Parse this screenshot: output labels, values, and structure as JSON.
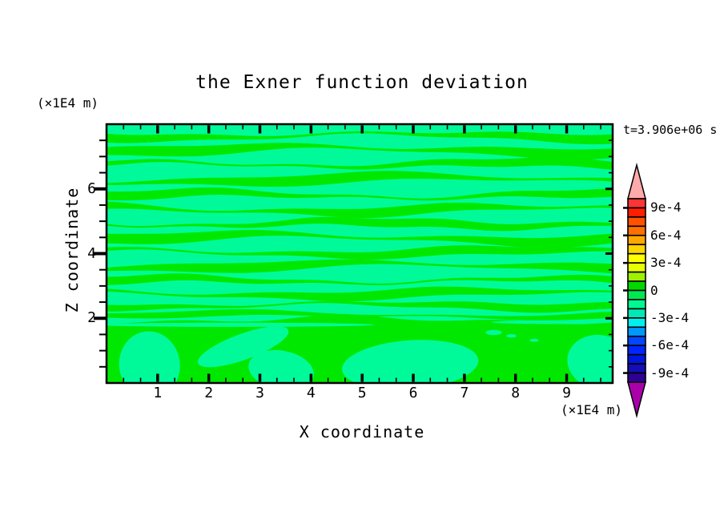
{
  "title": "the Exner function deviation",
  "annotations": {
    "time": "t=3.906e+06 s"
  },
  "axes": {
    "x": {
      "title": "X coordinate",
      "unit": "(×1E4 m)",
      "range": [
        0,
        9.9
      ],
      "major_ticks": [
        1,
        2,
        3,
        4,
        5,
        6,
        7,
        8,
        9
      ],
      "minor_step": 0.3333
    },
    "z": {
      "title": "Z coordinate",
      "unit": "(×1E4 m)",
      "range": [
        0,
        8
      ],
      "major_ticks": [
        2,
        4,
        6
      ],
      "minor_step": 0.5
    }
  },
  "colorbar": {
    "labels": [
      "9e-4",
      "6e-4",
      "3e-4",
      "0",
      "-3e-4",
      "-6e-4",
      "-9e-4"
    ],
    "label_values_e4": [
      9,
      6,
      3,
      0,
      -3,
      -6,
      -9
    ],
    "range_e4": [
      -10,
      10
    ],
    "segment_colors_top_to_bottom": [
      "#FF3434",
      "#FF1E00",
      "#FF5200",
      "#FF7000",
      "#FFA800",
      "#FFD600",
      "#FFFF00",
      "#E8FF00",
      "#A0F000",
      "#00D800",
      "#00E850",
      "#00F892",
      "#00E8B4",
      "#00F0F0",
      "#0098FF",
      "#0048FF",
      "#0026FF",
      "#0016DC",
      "#140EB4",
      "#2E0096"
    ],
    "over_color": "#FFAAAA",
    "under_color": "#AA00AA"
  },
  "chart_data": {
    "type": "filled_contour",
    "title": "the Exner function deviation",
    "xlabel": "X coordinate (×1E4 m)",
    "ylabel": "Z coordinate (×1E4 m)",
    "time": "t=3.906e+06 s",
    "xlim": [
      0,
      9.9
    ],
    "ylim": [
      0,
      8
    ],
    "contour_interval": 0.0001,
    "value_range": [
      -0.001,
      0.001
    ],
    "field_description": "Exner function deviation stays within ±1e-4: thin wavy horizontal bands of slightly positive (green) and slightly negative (spring green) deviation alternate through the column; below z≈2×1E4 m a connected positive (green) region holds several negative (spring green) blobs",
    "positive_band_color": "#00E800",
    "negative_band_color": "#00FA9A",
    "bands": [
      {
        "yc": 0.045,
        "hh": 0.02,
        "amp": 0.01,
        "fx": 1.2,
        "ph": 0.5,
        "tm": 0.55,
        "tfx": 0.9,
        "tph": 2.1
      },
      {
        "yc": 0.1,
        "hh": 0.022,
        "amp": 0.012,
        "fx": 1.0,
        "ph": 2.2,
        "tm": 0.5,
        "tfx": 1.3,
        "tph": 0.4
      },
      {
        "yc": 0.155,
        "hh": 0.018,
        "amp": 0.01,
        "fx": 1.4,
        "ph": 4.0,
        "tm": 0.6,
        "tfx": 0.8,
        "tph": 3.3
      },
      {
        "yc": 0.215,
        "hh": 0.022,
        "amp": 0.013,
        "fx": 0.9,
        "ph": 1.1,
        "tm": 0.5,
        "tfx": 1.1,
        "tph": 5.0
      },
      {
        "yc": 0.275,
        "hh": 0.019,
        "amp": 0.011,
        "fx": 1.3,
        "ph": 3.0,
        "tm": 0.6,
        "tfx": 1.0,
        "tph": 1.2
      },
      {
        "yc": 0.33,
        "hh": 0.021,
        "amp": 0.012,
        "fx": 1.1,
        "ph": 5.1,
        "tm": 0.55,
        "tfx": 1.4,
        "tph": 2.8
      },
      {
        "yc": 0.385,
        "hh": 0.018,
        "amp": 0.01,
        "fx": 1.5,
        "ph": 0.2,
        "tm": 0.6,
        "tfx": 0.9,
        "tph": 4.4
      },
      {
        "yc": 0.44,
        "hh": 0.022,
        "amp": 0.013,
        "fx": 1.0,
        "ph": 2.7,
        "tm": 0.5,
        "tfx": 1.2,
        "tph": 0.9
      },
      {
        "yc": 0.495,
        "hh": 0.019,
        "amp": 0.011,
        "fx": 1.2,
        "ph": 4.6,
        "tm": 0.6,
        "tfx": 1.0,
        "tph": 3.7
      },
      {
        "yc": 0.55,
        "hh": 0.021,
        "amp": 0.012,
        "fx": 0.9,
        "ph": 1.6,
        "tm": 0.55,
        "tfx": 1.3,
        "tph": 5.6
      },
      {
        "yc": 0.605,
        "hh": 0.018,
        "amp": 0.01,
        "fx": 1.4,
        "ph": 3.5,
        "tm": 0.6,
        "tfx": 0.8,
        "tph": 1.8
      },
      {
        "yc": 0.655,
        "hh": 0.02,
        "amp": 0.011,
        "fx": 1.1,
        "ph": 5.4,
        "tm": 0.5,
        "tfx": 1.1,
        "tph": 4.0
      },
      {
        "yc": 0.7,
        "hh": 0.017,
        "amp": 0.009,
        "fx": 1.3,
        "ph": 0.8,
        "tm": 0.6,
        "tfx": 1.0,
        "tph": 2.5
      },
      {
        "yc": 0.738,
        "hh": 0.014,
        "amp": 0.008,
        "fx": 1.0,
        "ph": 2.9,
        "tm": 0.65,
        "tfx": 1.2,
        "tph": 0.2
      }
    ],
    "bottom_region": {
      "top": 0.755,
      "amp1": 0.012,
      "fx1": 1.3,
      "ph1": 0.8,
      "amp2": 0.008,
      "fx2": 3.1,
      "ph2": 2.0
    },
    "negative_blobs": [
      {
        "cx": 0.085,
        "cy": 0.93,
        "rx": 0.06,
        "ry": 0.13,
        "rot": -8
      },
      {
        "cx": 0.27,
        "cy": 0.86,
        "rx": 0.095,
        "ry": 0.05,
        "rot": -20
      },
      {
        "cx": 0.345,
        "cy": 0.95,
        "rx": 0.065,
        "ry": 0.075,
        "rot": 10
      },
      {
        "cx": 0.6,
        "cy": 0.93,
        "rx": 0.135,
        "ry": 0.095,
        "rot": -4
      },
      {
        "cx": 0.975,
        "cy": 0.92,
        "rx": 0.065,
        "ry": 0.105,
        "rot": 12
      },
      {
        "cx": 0.25,
        "cy": 0.775,
        "rx": 0.28,
        "ry": 0.008,
        "rot": 0
      },
      {
        "cx": 0.88,
        "cy": 0.765,
        "rx": 0.12,
        "ry": 0.007,
        "rot": 0
      },
      {
        "cx": 0.765,
        "cy": 0.805,
        "rx": 0.016,
        "ry": 0.01,
        "rot": 0
      },
      {
        "cx": 0.8,
        "cy": 0.818,
        "rx": 0.01,
        "ry": 0.007,
        "rot": 0
      },
      {
        "cx": 0.845,
        "cy": 0.835,
        "rx": 0.009,
        "ry": 0.006,
        "rot": 0
      }
    ]
  }
}
